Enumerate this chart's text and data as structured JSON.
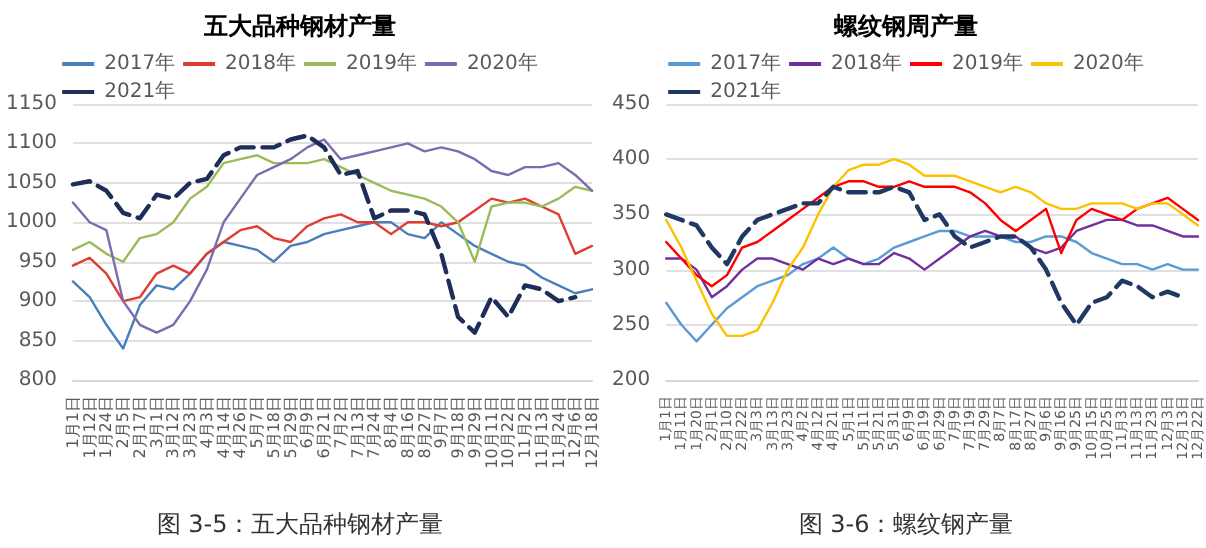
{
  "chart_data": [
    {
      "type": "line",
      "title": "五大品种钢材产量",
      "annotations": [
        "图 3-5：五大品种钢材产量"
      ],
      "categories": [
        "1月1日",
        "1月12日",
        "1月24日",
        "2月5日",
        "2月17日",
        "3月1日",
        "3月12日",
        "3月23日",
        "4月3日",
        "4月14日",
        "4月26日",
        "5月7日",
        "5月18日",
        "5月29日",
        "6月9日",
        "6月21日",
        "7月2日",
        "7月13日",
        "7月24日",
        "8月4日",
        "8月16日",
        "8月27日",
        "9月7日",
        "9月18日",
        "9月29日",
        "10月11日",
        "10月22日",
        "11月2日",
        "11月13日",
        "11月24日",
        "12月6日",
        "12月18日"
      ],
      "series": [
        {
          "name": "2017年",
          "color": "#4a7ebb",
          "values": [
            925,
            905,
            870,
            840,
            895,
            920,
            915,
            935,
            960,
            975,
            970,
            965,
            950,
            970,
            975,
            985,
            990,
            995,
            1000,
            1000,
            985,
            980,
            1000,
            985,
            970,
            960,
            950,
            945,
            930,
            920,
            910,
            915
          ]
        },
        {
          "name": "2018年",
          "color": "#e03c31",
          "values": [
            945,
            955,
            935,
            900,
            905,
            935,
            945,
            935,
            960,
            975,
            990,
            995,
            980,
            975,
            995,
            1005,
            1010,
            1000,
            1000,
            985,
            1000,
            1000,
            995,
            1000,
            1015,
            1030,
            1025,
            1030,
            1020,
            1010,
            960,
            970
          ]
        },
        {
          "name": "2019年",
          "color": "#9bbb59",
          "values": [
            965,
            975,
            960,
            950,
            980,
            985,
            1000,
            1030,
            1045,
            1075,
            1080,
            1085,
            1075,
            1075,
            1075,
            1080,
            1070,
            1060,
            1050,
            1040,
            1035,
            1030,
            1020,
            1000,
            950,
            1020,
            1025,
            1025,
            1020,
            1030,
            1045,
            1040
          ]
        },
        {
          "name": "2020年",
          "color": "#7e6ab0",
          "values": [
            1025,
            1000,
            990,
            900,
            870,
            860,
            870,
            900,
            940,
            1000,
            1030,
            1060,
            1070,
            1080,
            1095,
            1105,
            1080,
            1085,
            1090,
            1095,
            1100,
            1090,
            1095,
            1090,
            1080,
            1065,
            1060,
            1070,
            1070,
            1075,
            1060,
            1040
          ]
        },
        {
          "name": "2021年",
          "color": "#1f2d5a",
          "line_style": "dashed",
          "values": [
            1048,
            1052,
            1040,
            1012,
            1005,
            1035,
            1030,
            1050,
            1055,
            1085,
            1095,
            1095,
            1095,
            1105,
            1110,
            1095,
            1060,
            1065,
            1005,
            1015,
            1015,
            1010,
            960,
            880,
            860,
            905,
            880,
            920,
            915,
            900,
            905,
            null
          ]
        }
      ],
      "ylim": [
        800,
        1150
      ],
      "yticks": [
        800,
        850,
        900,
        950,
        1000,
        1050,
        1100,
        1150
      ],
      "grid": "y",
      "legend": "top",
      "marker": "none",
      "line_style": "solid"
    },
    {
      "type": "line",
      "title": "螺纹钢周产量",
      "annotations": [
        "图 3-6：螺纹钢产量"
      ],
      "categories": [
        "1月1日",
        "1月11日",
        "1月20日",
        "2月1日",
        "2月10日",
        "2月22日",
        "3月3日",
        "3月13日",
        "3月23日",
        "4月2日",
        "4月12日",
        "4月21日",
        "5月1日",
        "5月11日",
        "5月21日",
        "5月31日",
        "6月9日",
        "6月19日",
        "6月29日",
        "7月9日",
        "7月19日",
        "7月29日",
        "8月7日",
        "8月17日",
        "8月27日",
        "9月6日",
        "9月16日",
        "9月25日",
        "10月15日",
        "10月25日",
        "11月3日",
        "11月13日",
        "11月23日",
        "12月3日",
        "12月13日",
        "12月22日"
      ],
      "series": [
        {
          "name": "2017年",
          "color": "#5b9bd5",
          "values": [
            270,
            250,
            235,
            250,
            265,
            275,
            285,
            290,
            295,
            305,
            310,
            320,
            310,
            305,
            310,
            320,
            325,
            330,
            335,
            335,
            330,
            330,
            330,
            325,
            325,
            330,
            330,
            325,
            315,
            310,
            305,
            305,
            300,
            305,
            300,
            300
          ]
        },
        {
          "name": "2018年",
          "color": "#7030a0",
          "values": [
            310,
            310,
            300,
            275,
            285,
            300,
            310,
            310,
            305,
            300,
            310,
            305,
            310,
            305,
            305,
            315,
            310,
            300,
            310,
            320,
            330,
            335,
            330,
            330,
            320,
            315,
            320,
            335,
            340,
            345,
            345,
            340,
            340,
            335,
            330,
            330
          ]
        },
        {
          "name": "2019年",
          "color": "#ff0000",
          "values": [
            325,
            310,
            295,
            285,
            295,
            320,
            325,
            335,
            345,
            355,
            365,
            375,
            380,
            380,
            375,
            375,
            380,
            375,
            375,
            375,
            370,
            360,
            345,
            335,
            345,
            355,
            315,
            345,
            355,
            350,
            345,
            355,
            360,
            365,
            355,
            345
          ]
        },
        {
          "name": "2020年",
          "color": "#ffc000",
          "values": [
            345,
            320,
            290,
            260,
            240,
            240,
            245,
            270,
            300,
            320,
            350,
            375,
            390,
            395,
            395,
            400,
            395,
            385,
            385,
            385,
            380,
            375,
            370,
            375,
            370,
            360,
            355,
            355,
            360,
            360,
            360,
            355,
            360,
            360,
            350,
            340
          ]
        },
        {
          "name": "2021年",
          "color": "#1f3864",
          "line_style": "dashed",
          "values": [
            350,
            345,
            340,
            320,
            305,
            330,
            345,
            350,
            355,
            360,
            360,
            375,
            370,
            370,
            370,
            375,
            370,
            345,
            350,
            330,
            320,
            325,
            330,
            330,
            320,
            300,
            270,
            250,
            270,
            275,
            290,
            285,
            275,
            280,
            275,
            null
          ]
        }
      ],
      "ylim": [
        200,
        450
      ],
      "yticks": [
        200,
        250,
        300,
        350,
        400,
        450
      ],
      "grid": "y",
      "legend": "top",
      "marker": "none",
      "line_style": "solid"
    }
  ]
}
